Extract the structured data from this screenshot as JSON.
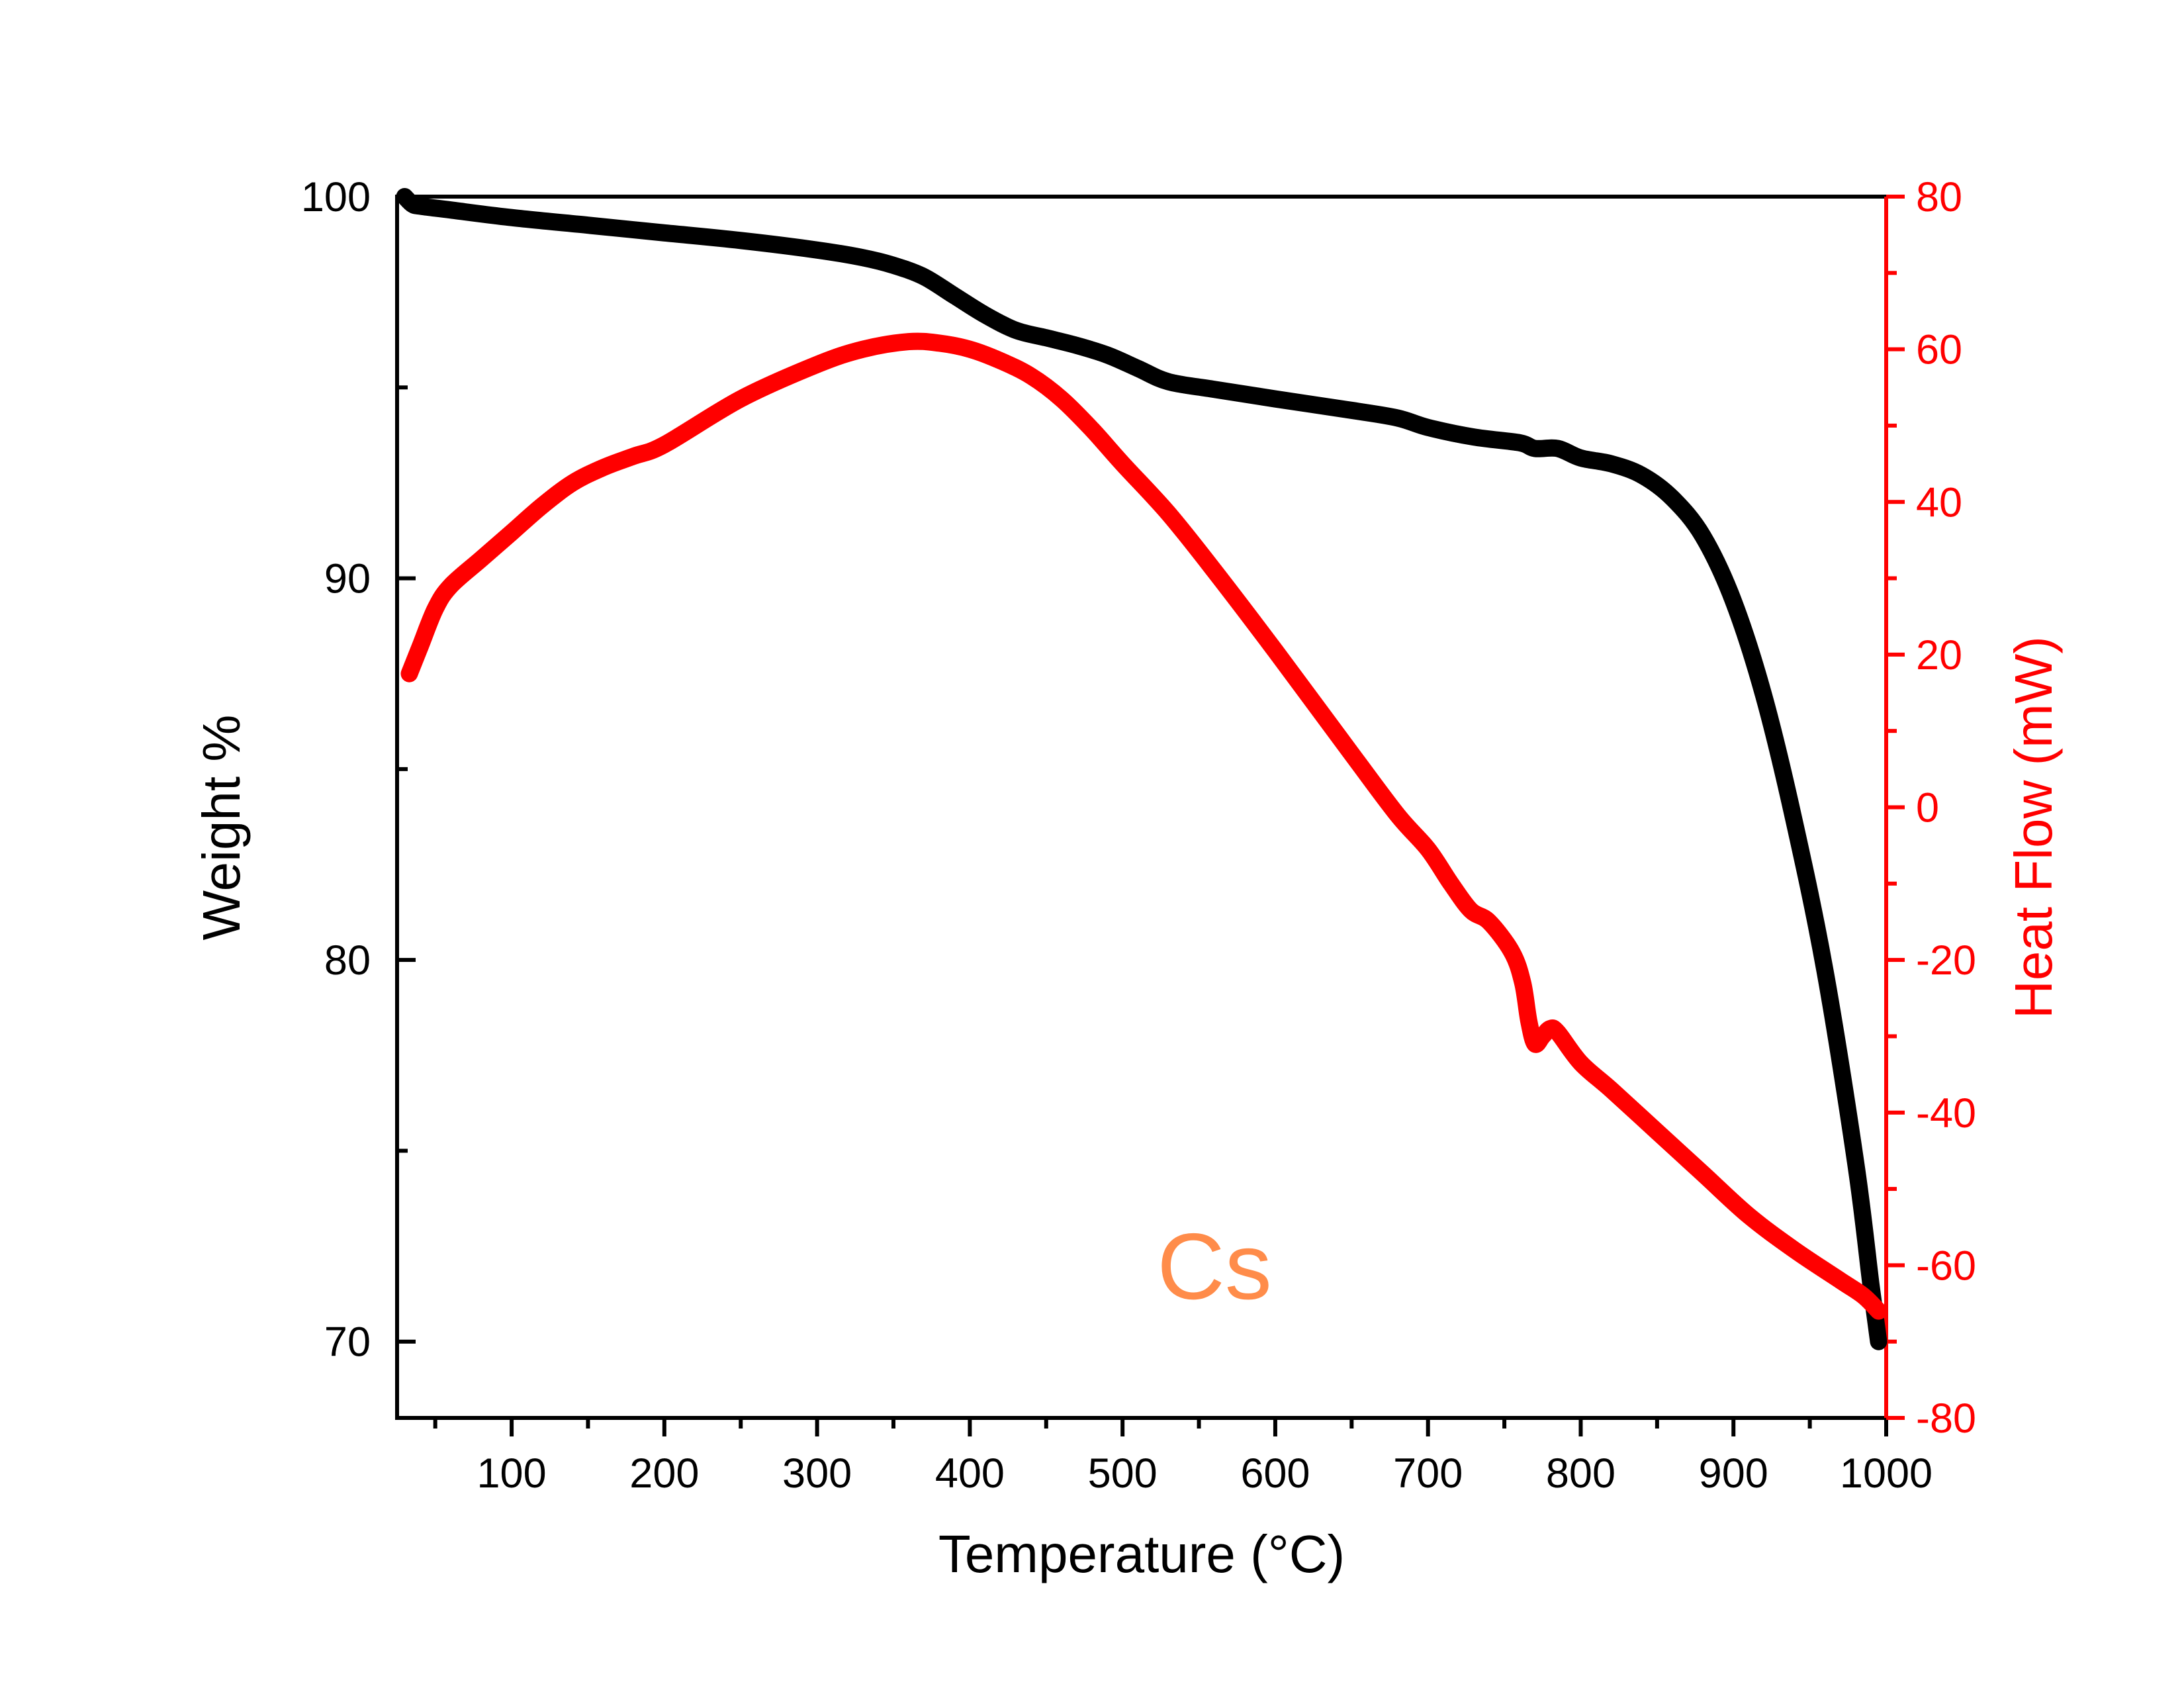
{
  "chart_data": {
    "type": "line",
    "xlabel": "Temperature (°C)",
    "ylabel_left": "Weight %",
    "ylabel_right": "Heat Flow (mW)",
    "annotation": "Cs",
    "xlim": [
      25,
      1000
    ],
    "ylim_left": [
      68,
      100
    ],
    "ylim_right": [
      -80,
      80
    ],
    "x_ticks": [
      100,
      200,
      300,
      400,
      500,
      600,
      700,
      800,
      900,
      1000
    ],
    "y_left_ticks": [
      70,
      80,
      90,
      100
    ],
    "y_right_ticks": [
      -80,
      -60,
      -40,
      -20,
      0,
      20,
      40,
      60,
      80
    ],
    "grid": false,
    "colors": {
      "weight": "#000000",
      "heat_flow": "#ff0000",
      "annotation": "#ff8c4a",
      "axis": "#000000",
      "right_axis": "#ff0000"
    },
    "series": [
      {
        "axis": "left",
        "color": "#000000",
        "points": [
          [
            30,
            100
          ],
          [
            35,
            99.8
          ],
          [
            40,
            99.75
          ],
          [
            60,
            99.65
          ],
          [
            100,
            99.45
          ],
          [
            150,
            99.25
          ],
          [
            200,
            99.05
          ],
          [
            250,
            98.85
          ],
          [
            300,
            98.6
          ],
          [
            330,
            98.4
          ],
          [
            350,
            98.2
          ],
          [
            370,
            97.9
          ],
          [
            390,
            97.4
          ],
          [
            410,
            96.9
          ],
          [
            430,
            96.5
          ],
          [
            450,
            96.3
          ],
          [
            470,
            96.1
          ],
          [
            490,
            95.85
          ],
          [
            510,
            95.5
          ],
          [
            530,
            95.15
          ],
          [
            560,
            94.95
          ],
          [
            600,
            94.7
          ],
          [
            650,
            94.4
          ],
          [
            680,
            94.2
          ],
          [
            700,
            93.95
          ],
          [
            730,
            93.7
          ],
          [
            760,
            93.55
          ],
          [
            770,
            93.4
          ],
          [
            785,
            93.4
          ],
          [
            800,
            93.15
          ],
          [
            820,
            93.0
          ],
          [
            840,
            92.7
          ],
          [
            860,
            92.1
          ],
          [
            880,
            91.1
          ],
          [
            900,
            89.4
          ],
          [
            920,
            86.9
          ],
          [
            940,
            83.6
          ],
          [
            960,
            79.7
          ],
          [
            980,
            74.7
          ],
          [
            990,
            71.5
          ],
          [
            995,
            70.0
          ]
        ]
      },
      {
        "axis": "right",
        "color": "#ff0000",
        "points": [
          [
            33,
            17.5
          ],
          [
            40,
            21
          ],
          [
            50,
            26
          ],
          [
            60,
            29
          ],
          [
            80,
            32.5
          ],
          [
            100,
            36
          ],
          [
            120,
            39.5
          ],
          [
            140,
            42.5
          ],
          [
            160,
            44.5
          ],
          [
            180,
            46.0
          ],
          [
            200,
            47.5
          ],
          [
            250,
            53.5
          ],
          [
            300,
            58.0
          ],
          [
            330,
            60.0
          ],
          [
            360,
            61.0
          ],
          [
            380,
            60.8
          ],
          [
            400,
            60.0
          ],
          [
            420,
            58.5
          ],
          [
            440,
            56.5
          ],
          [
            460,
            53.5
          ],
          [
            480,
            49.5
          ],
          [
            500,
            45.0
          ],
          [
            530,
            38.5
          ],
          [
            560,
            31.0
          ],
          [
            600,
            20.5
          ],
          [
            650,
            7.0
          ],
          [
            680,
            -1.0
          ],
          [
            700,
            -5.5
          ],
          [
            715,
            -10.0
          ],
          [
            728,
            -13.5
          ],
          [
            740,
            -15.0
          ],
          [
            755,
            -19.0
          ],
          [
            762,
            -23.0
          ],
          [
            766,
            -28.0
          ],
          [
            770,
            -31.0
          ],
          [
            775,
            -30.0
          ],
          [
            780,
            -29.0
          ],
          [
            785,
            -29.5
          ],
          [
            800,
            -33.5
          ],
          [
            820,
            -37.0
          ],
          [
            850,
            -42.5
          ],
          [
            880,
            -48.0
          ],
          [
            910,
            -53.5
          ],
          [
            940,
            -58.0
          ],
          [
            970,
            -62.0
          ],
          [
            985,
            -64.0
          ],
          [
            995,
            -66.0
          ]
        ]
      }
    ]
  }
}
